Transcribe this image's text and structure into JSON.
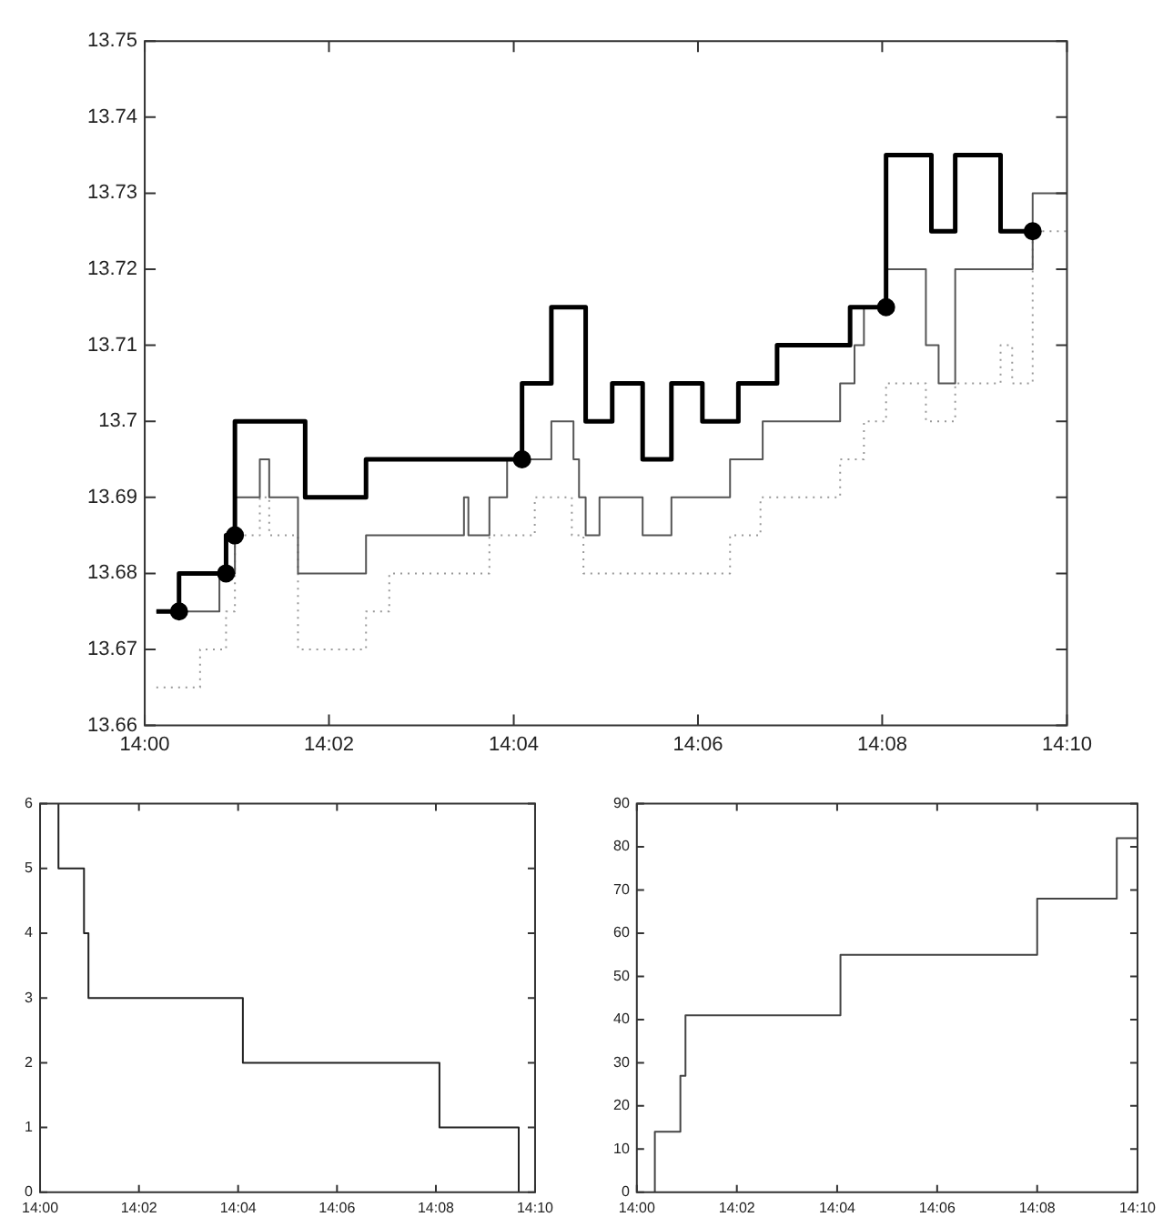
{
  "chart_data": [
    {
      "type": "step",
      "xlim": [
        14,
        14.1667
      ],
      "xticks": [
        {
          "value": 14,
          "label": "14:00"
        },
        {
          "value": 14.0333,
          "label": "14:02"
        },
        {
          "value": 14.0667,
          "label": "14:04"
        },
        {
          "value": 14.1,
          "label": "14:06"
        },
        {
          "value": 14.1333,
          "label": "14:08"
        },
        {
          "value": 14.1667,
          "label": "14:10"
        }
      ],
      "ylim": [
        13.66,
        13.75
      ],
      "yticks": [
        13.66,
        13.67,
        13.68,
        13.69,
        13.7,
        13.71,
        13.72,
        13.73,
        13.74,
        13.75
      ],
      "grid": false,
      "legend": false,
      "series": [
        {
          "color": "#000000",
          "line_style": "solid",
          "x": [
            14.0021,
            14.0062,
            14.0147,
            14.0163,
            14.029,
            14.04,
            14.0682,
            14.0735,
            14.0797,
            14.0845,
            14.09,
            14.0952,
            14.1008,
            14.1073,
            14.1143,
            14.1275,
            14.134,
            14.1422,
            14.1465,
            14.1547,
            14.1607
          ],
          "values": [
            13.675,
            13.68,
            13.685,
            13.7,
            13.69,
            13.695,
            13.705,
            13.715,
            13.7,
            13.705,
            13.695,
            13.705,
            13.7,
            13.705,
            13.71,
            13.715,
            13.735,
            13.725,
            13.735,
            13.725,
            13.725
          ]
        },
        {
          "color": "#555555",
          "line_style": "solid",
          "x": [
            14.0021,
            14.0135,
            14.0163,
            14.0208,
            14.0225,
            14.0277,
            14.04,
            14.0577,
            14.0585,
            14.0623,
            14.0655,
            14.0735,
            14.0775,
            14.0785,
            14.0797,
            14.0822,
            14.09,
            14.0952,
            14.1058,
            14.1117,
            14.1257,
            14.1283,
            14.13,
            14.134,
            14.1412,
            14.1435,
            14.1465,
            14.1605,
            14.1667
          ],
          "values": [
            13.675,
            13.68,
            13.69,
            13.695,
            13.69,
            13.68,
            13.685,
            13.69,
            13.685,
            13.69,
            13.695,
            13.7,
            13.695,
            13.69,
            13.685,
            13.69,
            13.685,
            13.69,
            13.695,
            13.7,
            13.705,
            13.71,
            13.715,
            13.72,
            13.71,
            13.705,
            13.72,
            13.73,
            13.73
          ]
        },
        {
          "color": "#999999",
          "line_style": "dotted",
          "x": [
            14.0021,
            14.01,
            14.0147,
            14.0163,
            14.0208,
            14.0225,
            14.0277,
            14.04,
            14.0442,
            14.0623,
            14.0705,
            14.0772,
            14.0793,
            14.1058,
            14.1113,
            14.1257,
            14.13,
            14.134,
            14.1412,
            14.1465,
            14.1547,
            14.1568,
            14.1605,
            14.1667
          ],
          "values": [
            13.665,
            13.67,
            13.675,
            13.685,
            13.69,
            13.685,
            13.67,
            13.675,
            13.68,
            13.685,
            13.69,
            13.685,
            13.68,
            13.685,
            13.69,
            13.695,
            13.7,
            13.705,
            13.7,
            13.705,
            13.71,
            13.705,
            13.725,
            13.725
          ]
        },
        {
          "type": "scatter",
          "marker": "circle",
          "color": "#000000",
          "x": [
            14.0062,
            14.0147,
            14.0163,
            14.0682,
            14.134,
            14.1605
          ],
          "values": [
            13.675,
            13.68,
            13.685,
            13.695,
            13.715,
            13.725
          ]
        }
      ]
    },
    {
      "type": "step",
      "xlim": [
        14,
        14.1667
      ],
      "xticks": [
        {
          "value": 14,
          "label": "14:00"
        },
        {
          "value": 14.0333,
          "label": "14:02"
        },
        {
          "value": 14.0667,
          "label": "14:04"
        },
        {
          "value": 14.1,
          "label": "14:06"
        },
        {
          "value": 14.1333,
          "label": "14:08"
        },
        {
          "value": 14.1667,
          "label": "14:10"
        }
      ],
      "ylim": [
        0,
        6
      ],
      "yticks": [
        0,
        1,
        2,
        3,
        4,
        5,
        6
      ],
      "grid": false,
      "legend": false,
      "series": [
        {
          "color": "#222222",
          "line_style": "solid",
          "x": [
            14.0062,
            14.0062,
            14.0148,
            14.0163,
            14.0683,
            14.1345,
            14.1612
          ],
          "values": [
            6,
            5,
            4,
            3,
            2,
            1,
            0
          ]
        }
      ]
    },
    {
      "type": "step",
      "xlim": [
        14,
        14.1667
      ],
      "xticks": [
        {
          "value": 14,
          "label": "14:00"
        },
        {
          "value": 14.0333,
          "label": "14:02"
        },
        {
          "value": 14.0667,
          "label": "14:04"
        },
        {
          "value": 14.1,
          "label": "14:06"
        },
        {
          "value": 14.1333,
          "label": "14:08"
        },
        {
          "value": 14.1667,
          "label": "14:10"
        }
      ],
      "ylim": [
        0,
        90
      ],
      "yticks": [
        0,
        10,
        20,
        30,
        40,
        50,
        60,
        70,
        80,
        90
      ],
      "grid": false,
      "legend": false,
      "series": [
        {
          "color": "#444444",
          "line_style": "solid",
          "x": [
            14.006,
            14.006,
            14.0145,
            14.0162,
            14.0678,
            14.1333,
            14.1598,
            14.1667
          ],
          "values": [
            0,
            14,
            27,
            41,
            55,
            68,
            82,
            82
          ]
        }
      ]
    }
  ]
}
